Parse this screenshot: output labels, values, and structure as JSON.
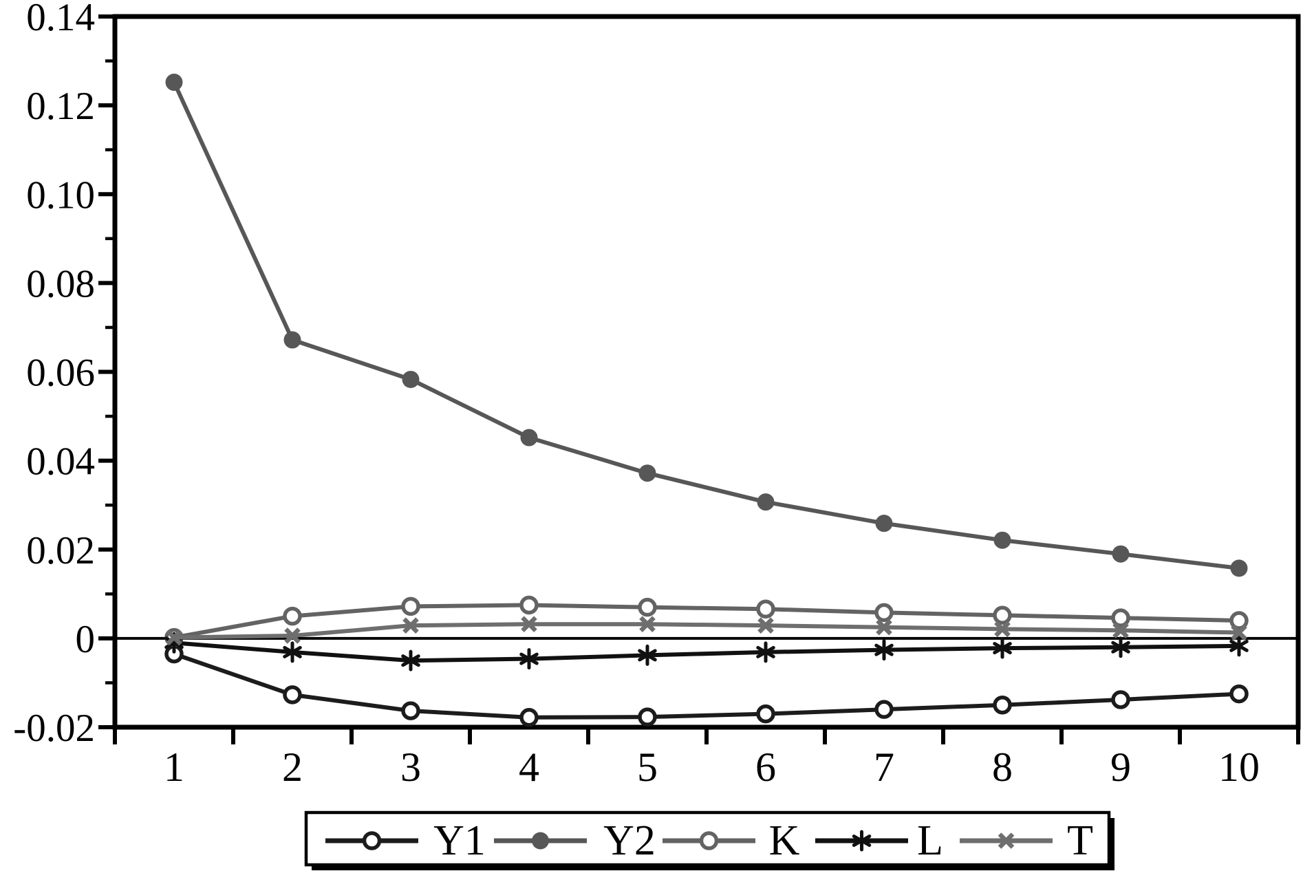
{
  "chart_data": {
    "type": "line",
    "title": "",
    "xlabel": "",
    "ylabel": "",
    "x": [
      1,
      2,
      3,
      4,
      5,
      6,
      7,
      8,
      9,
      10
    ],
    "xtick_labels": [
      "1",
      "2",
      "3",
      "4",
      "5",
      "6",
      "7",
      "8",
      "9",
      "10"
    ],
    "ylim": [
      -0.02,
      0.14
    ],
    "yticks": [
      -0.02,
      0,
      0.02,
      0.04,
      0.06,
      0.08,
      0.1,
      0.12,
      0.14
    ],
    "ytick_labels": [
      "-0.02",
      "0",
      "0.02",
      "0.04",
      "0.06",
      "0.08",
      "0.10",
      "0.12",
      "0.14"
    ],
    "yminor_step": 0.01,
    "grid": false,
    "zero_line": true,
    "legend_position": "bottom-outside",
    "axis_color": "#000000",
    "series": [
      {
        "name": "Y1",
        "color": "#1c1c1c",
        "marker": "open-circle",
        "values": [
          -0.0035,
          -0.0127,
          -0.0163,
          -0.0178,
          -0.0177,
          -0.017,
          -0.016,
          -0.015,
          -0.0138,
          -0.0125
        ]
      },
      {
        "name": "Y2",
        "color": "#575757",
        "marker": "filled-circle",
        "values": [
          0.1252,
          0.0672,
          0.0583,
          0.0452,
          0.0372,
          0.0307,
          0.0259,
          0.0221,
          0.019,
          0.0158
        ]
      },
      {
        "name": "K",
        "color": "#636363",
        "marker": "open-circle",
        "values": [
          0.0002,
          0.005,
          0.0072,
          0.0075,
          0.007,
          0.0066,
          0.0058,
          0.0052,
          0.0046,
          0.004
        ]
      },
      {
        "name": "L",
        "color": "#111111",
        "marker": "asterisk",
        "values": [
          -0.001,
          -0.0031,
          -0.005,
          -0.0046,
          -0.0038,
          -0.0031,
          -0.0026,
          -0.0022,
          -0.002,
          -0.0017
        ]
      },
      {
        "name": "T",
        "color": "#6e6e6e",
        "marker": "x",
        "values": [
          0.0002,
          0.0006,
          0.0029,
          0.0032,
          0.0032,
          0.0029,
          0.0025,
          0.0021,
          0.0018,
          0.0013
        ]
      }
    ],
    "legend_items": [
      "Y1",
      "Y2",
      "K",
      "L",
      "T"
    ]
  }
}
